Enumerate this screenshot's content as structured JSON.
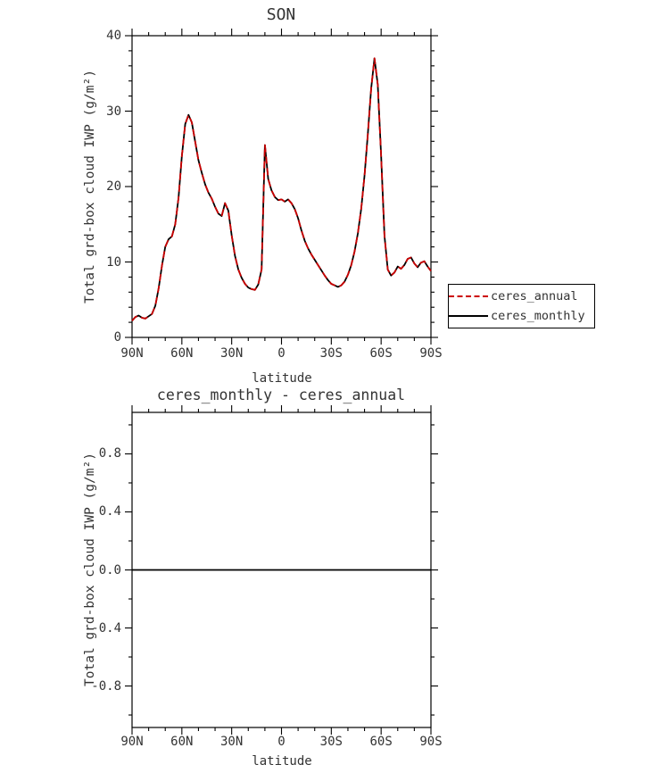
{
  "colors": {
    "background": "#ffffff",
    "frame": "#000000",
    "text": "#333333",
    "annual_red": "#cc0000",
    "monthly_black": "#000000"
  },
  "top_chart": {
    "title": "SON",
    "ylabel": "Total grd-box cloud IWP (g/m²)",
    "xlabel": "latitude",
    "legend": {
      "entries": [
        {
          "label": "ceres_annual",
          "color": "#cc0000",
          "line_style": "dashed"
        },
        {
          "label": "ceres_monthly",
          "color": "#000000",
          "line_style": "solid"
        }
      ]
    }
  },
  "bottom_chart": {
    "title": "ceres_monthly - ceres_annual",
    "ylabel": "Total grd-box cloud IWP (g/m²)",
    "xlabel": "latitude"
  },
  "chart_data": [
    {
      "type": "line",
      "title": "SON",
      "xlabel": "latitude",
      "ylabel": "Total grd-box cloud IWP (g/m²)",
      "xlim": [
        90,
        -90
      ],
      "ylim": [
        0,
        40
      ],
      "grid": false,
      "legend_position": "outside-right-bottom",
      "xticks": {
        "values": [
          90,
          60,
          30,
          0,
          -30,
          -60,
          -90
        ],
        "labels": [
          "90N",
          "60N",
          "30N",
          "0",
          "30S",
          "60S",
          "90S"
        ]
      },
      "yticks": {
        "values": [
          0,
          10,
          20,
          30,
          40
        ],
        "labels": [
          "0",
          "10",
          "20",
          "30",
          "40"
        ]
      },
      "x": [
        90,
        88,
        86,
        84,
        82,
        80,
        78,
        76,
        74,
        72,
        70,
        68,
        66,
        64,
        62,
        60,
        58,
        56,
        54,
        52,
        50,
        48,
        46,
        44,
        42,
        40,
        38,
        36,
        34,
        32,
        30,
        28,
        26,
        24,
        22,
        20,
        18,
        16,
        14,
        12,
        10,
        8,
        6,
        4,
        2,
        0,
        -2,
        -4,
        -6,
        -8,
        -10,
        -12,
        -14,
        -16,
        -18,
        -20,
        -22,
        -24,
        -26,
        -28,
        -30,
        -32,
        -34,
        -36,
        -38,
        -40,
        -42,
        -44,
        -46,
        -48,
        -50,
        -52,
        -54,
        -56,
        -58,
        -60,
        -62,
        -64,
        -66,
        -68,
        -70,
        -72,
        -74,
        -76,
        -78,
        -80,
        -82,
        -84,
        -86,
        -88,
        -90
      ],
      "values": [
        2.2,
        2.7,
        2.9,
        2.6,
        2.5,
        2.8,
        3.1,
        4.2,
        6.5,
        9.5,
        12.0,
        13.0,
        13.4,
        15.0,
        18.5,
        24.0,
        28.3,
        29.5,
        28.5,
        26.0,
        23.5,
        21.8,
        20.3,
        19.2,
        18.4,
        17.3,
        16.4,
        16.1,
        17.8,
        16.8,
        13.5,
        10.8,
        9.0,
        7.9,
        7.1,
        6.6,
        6.4,
        6.3,
        7.0,
        9.0,
        25.5,
        21.0,
        19.5,
        18.6,
        18.2,
        18.3,
        18.0,
        18.3,
        17.8,
        17.0,
        15.8,
        14.2,
        12.8,
        11.8,
        11.0,
        10.3,
        9.6,
        8.9,
        8.2,
        7.6,
        7.1,
        6.9,
        6.7,
        6.9,
        7.4,
        8.3,
        9.6,
        11.4,
        13.8,
        17.0,
        21.5,
        27.0,
        33.0,
        37.0,
        33.5,
        24.0,
        13.5,
        9.0,
        8.2,
        8.6,
        9.4,
        9.1,
        9.6,
        10.4,
        10.6,
        9.8,
        9.3,
        9.9,
        10.1,
        9.4,
        8.8
      ],
      "series": [
        {
          "name": "ceres_monthly",
          "color": "#000000",
          "style": "solid"
        },
        {
          "name": "ceres_annual",
          "color": "#cc0000",
          "style": "dashed"
        }
      ],
      "values_note": "ceres_monthly and ceres_annual overlap exactly; both plot the shared values array"
    },
    {
      "type": "line",
      "title": "ceres_monthly - ceres_annual",
      "xlabel": "latitude",
      "ylabel": "Total grd-box cloud IWP (g/m²)",
      "xlim": [
        90,
        -90
      ],
      "ylim": [
        -1.086,
        1.086
      ],
      "grid": false,
      "xticks": {
        "values": [
          90,
          60,
          30,
          0,
          -30,
          -60,
          -90
        ],
        "labels": [
          "90N",
          "60N",
          "30N",
          "0",
          "30S",
          "60S",
          "90S"
        ]
      },
      "yticks": {
        "values": [
          0.8,
          0.4,
          0.0,
          -0.4,
          -0.8
        ],
        "labels": [
          "0.8",
          "0.4",
          "0.0",
          "-0.4",
          "-0.8"
        ]
      },
      "x": [
        90,
        -90
      ],
      "values": [
        0,
        0
      ],
      "series": [
        {
          "name": "ceres_monthly - ceres_annual",
          "color": "#000000",
          "style": "solid"
        }
      ]
    }
  ]
}
